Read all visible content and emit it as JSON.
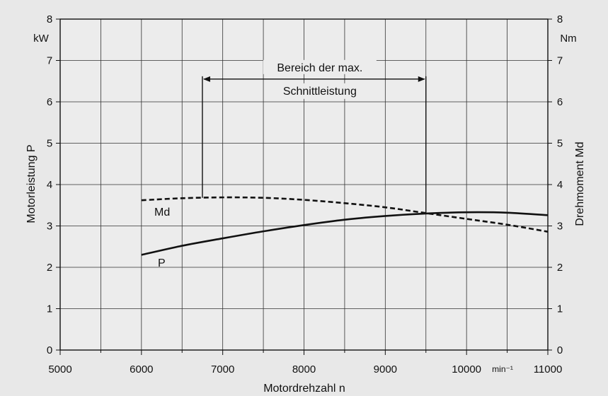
{
  "chart_data": {
    "type": "line",
    "x_axis": {
      "label": "Motordrehzahl  n",
      "unit": "min⁻¹",
      "range": [
        5000,
        11000
      ],
      "ticks": [
        5000,
        6000,
        7000,
        8000,
        9000,
        10000,
        11000
      ],
      "tick_labels": [
        "5000",
        "6000",
        "7000",
        "8000",
        "9000",
        "10000",
        "11000"
      ],
      "minor_grid_step": 500
    },
    "y_left": {
      "label": "Motorleistung  P",
      "unit": "kW",
      "range": [
        0,
        8
      ],
      "ticks": [
        0,
        1,
        2,
        3,
        4,
        5,
        6,
        7,
        8
      ],
      "tick_labels": [
        "0",
        "1",
        "2",
        "3",
        "4",
        "5",
        "6",
        "7",
        "8"
      ]
    },
    "y_right": {
      "label": "Drehmoment  Md",
      "unit": "Nm",
      "range": [
        0,
        8
      ],
      "ticks": [
        0,
        1,
        2,
        3,
        4,
        5,
        6,
        7,
        8
      ],
      "tick_labels": [
        "0",
        "1",
        "2",
        "3",
        "4",
        "5",
        "6",
        "7",
        "8"
      ]
    },
    "grid": true,
    "series": [
      {
        "name": "P",
        "axis": "left",
        "style": "solid",
        "x": [
          6000,
          6500,
          7000,
          7500,
          8000,
          8500,
          9000,
          9500,
          10000,
          10500,
          11000
        ],
        "values": [
          2.3,
          2.52,
          2.7,
          2.87,
          3.02,
          3.15,
          3.24,
          3.3,
          3.33,
          3.32,
          3.26
        ]
      },
      {
        "name": "Md",
        "axis": "right",
        "style": "dashed",
        "x": [
          6000,
          6500,
          7000,
          7500,
          8000,
          8500,
          9000,
          9500,
          10000,
          10500,
          11000
        ],
        "values": [
          3.62,
          3.67,
          3.69,
          3.68,
          3.63,
          3.55,
          3.45,
          3.31,
          3.17,
          3.03,
          2.86
        ]
      }
    ],
    "annotation": {
      "text_line1": "Bereich der max.",
      "text_line2": "Schnittleistung",
      "x_start": 6750,
      "x_end": 9500,
      "arrow_y": 6.55
    }
  }
}
